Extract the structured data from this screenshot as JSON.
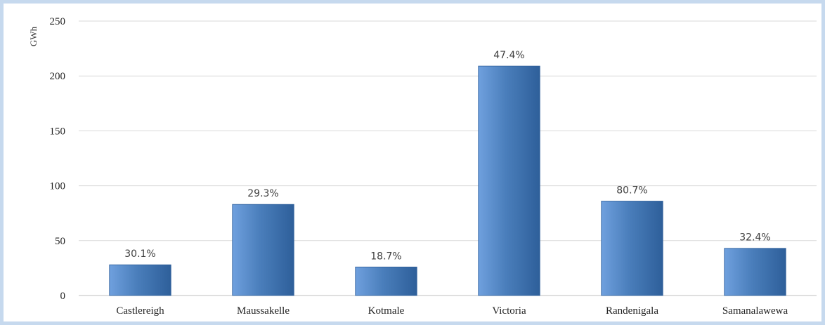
{
  "chart_data": {
    "type": "bar",
    "title": "",
    "xlabel": "",
    "ylabel": "GWh",
    "ylim": [
      0,
      250
    ],
    "yticks": [
      0,
      50,
      100,
      150,
      200,
      250
    ],
    "grid": true,
    "categories": [
      "Castlereigh",
      "Maussakelle",
      "Kotmale",
      "Victoria",
      "Randenigala",
      "Samanalawewa"
    ],
    "values": [
      28,
      83,
      26,
      209,
      86,
      43
    ],
    "data_labels": [
      "30.1%",
      "29.3%",
      "18.7%",
      "47.4%",
      "80.7%",
      "32.4%"
    ],
    "colors": {
      "bar": "#4a7ebb",
      "bar_light": "#6fa0de",
      "bar_dark": "#2e5f9a",
      "grid": "#d9d9d9",
      "frame": "#c6d9ee"
    }
  }
}
